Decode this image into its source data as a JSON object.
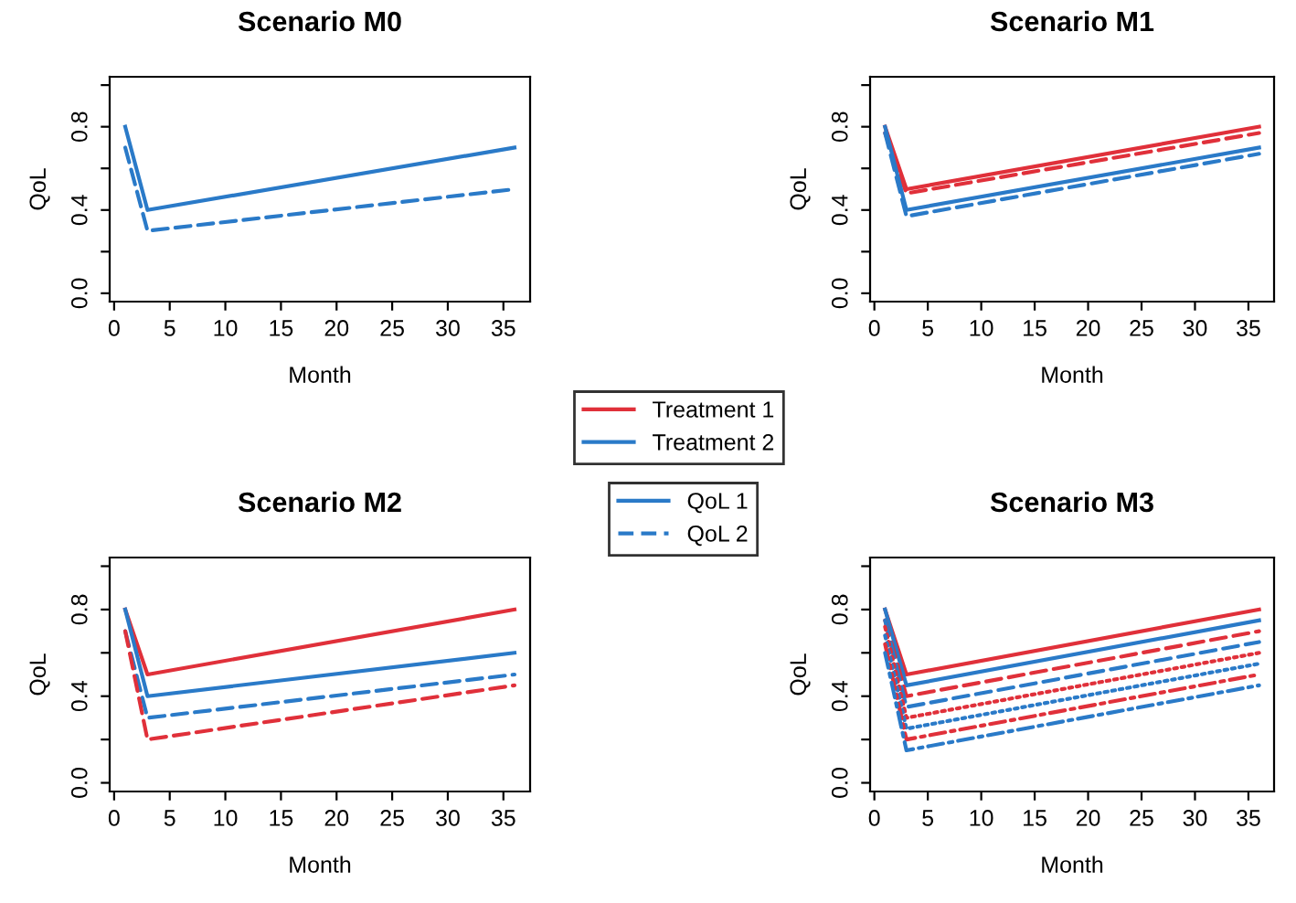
{
  "chart_data": [
    {
      "type": "line",
      "title": "Scenario M0",
      "xlabel": "Month",
      "ylabel": "QoL",
      "xlim": [
        -0.4,
        37.4
      ],
      "ylim": [
        -0.04,
        1.04
      ],
      "xticks": [
        0,
        5,
        10,
        15,
        20,
        25,
        30,
        35
      ],
      "yticks": [
        {
          "value": 0,
          "label": "0.0"
        },
        {
          "value": 0.2,
          "label": null
        },
        {
          "value": 0.4,
          "label": "0.4"
        },
        {
          "value": 0.6,
          "label": null
        },
        {
          "value": 0.8,
          "label": "0.8"
        },
        {
          "value": 1.0,
          "label": null
        }
      ],
      "grid": false,
      "legend": false,
      "series": [
        {
          "color": "#2a7ac8",
          "line_style": "solid",
          "x": [
            1,
            3,
            36
          ],
          "values": [
            0.8,
            0.4,
            0.7
          ]
        },
        {
          "color": "#2a7ac8",
          "line_style": "dashed",
          "x": [
            1,
            3,
            36
          ],
          "values": [
            0.7,
            0.3,
            0.5
          ]
        }
      ]
    },
    {
      "type": "line",
      "title": "Scenario M1",
      "xlabel": "Month",
      "ylabel": "QoL",
      "xlim": [
        -0.4,
        37.4
      ],
      "ylim": [
        -0.04,
        1.04
      ],
      "xticks": [
        0,
        5,
        10,
        15,
        20,
        25,
        30,
        35
      ],
      "yticks": [
        {
          "value": 0,
          "label": "0.0"
        },
        {
          "value": 0.2,
          "label": null
        },
        {
          "value": 0.4,
          "label": "0.4"
        },
        {
          "value": 0.6,
          "label": null
        },
        {
          "value": 0.8,
          "label": "0.8"
        },
        {
          "value": 1.0,
          "label": null
        }
      ],
      "grid": false,
      "legend": "bottom left",
      "series": [
        {
          "name": "Treatment 1",
          "color": "#e0303a",
          "line_style": "solid",
          "x": [
            1,
            3,
            36
          ],
          "values": [
            0.8,
            0.5,
            0.8
          ]
        },
        {
          "color": "#e0303a",
          "line_style": "dashed",
          "x": [
            1,
            3,
            36
          ],
          "values": [
            0.77,
            0.48,
            0.77
          ]
        },
        {
          "name": "Treatment 2",
          "color": "#2a7ac8",
          "line_style": "solid",
          "x": [
            1,
            3,
            36
          ],
          "values": [
            0.8,
            0.4,
            0.7
          ]
        },
        {
          "color": "#2a7ac8",
          "line_style": "dashed",
          "x": [
            1,
            3,
            36
          ],
          "values": [
            0.77,
            0.37,
            0.67
          ]
        }
      ]
    },
    {
      "type": "line",
      "title": "Scenario M2",
      "xlabel": "Month",
      "ylabel": "QoL",
      "xlim": [
        -0.4,
        37.4
      ],
      "ylim": [
        -0.04,
        1.04
      ],
      "xticks": [
        0,
        5,
        10,
        15,
        20,
        25,
        30,
        35
      ],
      "yticks": [
        {
          "value": 0,
          "label": "0.0"
        },
        {
          "value": 0.2,
          "label": null
        },
        {
          "value": 0.4,
          "label": "0.4"
        },
        {
          "value": 0.6,
          "label": null
        },
        {
          "value": 0.8,
          "label": "0.8"
        },
        {
          "value": 1.0,
          "label": null
        }
      ],
      "grid": false,
      "legend": "top right",
      "series": [
        {
          "color": "#e0303a",
          "line_style": "solid",
          "x": [
            1,
            3,
            36
          ],
          "values": [
            0.8,
            0.5,
            0.8
          ]
        },
        {
          "name": "QoL 1",
          "color": "#2a7ac8",
          "line_style": "solid",
          "x": [
            1,
            3,
            36
          ],
          "values": [
            0.8,
            0.4,
            0.6
          ]
        },
        {
          "name": "QoL 2",
          "color": "#2a7ac8",
          "line_style": "dashed",
          "x": [
            1,
            3,
            36
          ],
          "values": [
            0.7,
            0.3,
            0.5
          ]
        },
        {
          "color": "#e0303a",
          "line_style": "dashed",
          "x": [
            1,
            3,
            36
          ],
          "values": [
            0.7,
            0.2,
            0.45
          ]
        }
      ]
    },
    {
      "type": "line",
      "title": "Scenario M3",
      "xlabel": "Month",
      "ylabel": "QoL",
      "xlim": [
        -0.4,
        37.4
      ],
      "ylim": [
        -0.04,
        1.04
      ],
      "xticks": [
        0,
        5,
        10,
        15,
        20,
        25,
        30,
        35
      ],
      "yticks": [
        {
          "value": 0,
          "label": "0.0"
        },
        {
          "value": 0.2,
          "label": null
        },
        {
          "value": 0.4,
          "label": "0.4"
        },
        {
          "value": 0.6,
          "label": null
        },
        {
          "value": 0.8,
          "label": "0.8"
        },
        {
          "value": 1.0,
          "label": null
        }
      ],
      "grid": false,
      "legend": false,
      "series": [
        {
          "color": "#e0303a",
          "line_style": "solid",
          "x": [
            1,
            3,
            36
          ],
          "values": [
            0.8,
            0.5,
            0.8
          ]
        },
        {
          "color": "#2a7ac8",
          "line_style": "solid",
          "x": [
            1,
            3,
            36
          ],
          "values": [
            0.8,
            0.45,
            0.75
          ]
        },
        {
          "color": "#e0303a",
          "line_style": "dashed",
          "x": [
            1,
            3,
            36
          ],
          "values": [
            0.75,
            0.4,
            0.7
          ]
        },
        {
          "color": "#2a7ac8",
          "line_style": "dashed",
          "x": [
            1,
            3,
            36
          ],
          "values": [
            0.75,
            0.35,
            0.65
          ]
        },
        {
          "color": "#e0303a",
          "line_style": "dotted",
          "x": [
            1,
            3,
            36
          ],
          "values": [
            0.72,
            0.3,
            0.6
          ]
        },
        {
          "color": "#2a7ac8",
          "line_style": "dotted",
          "x": [
            1,
            3,
            36
          ],
          "values": [
            0.68,
            0.25,
            0.55
          ]
        },
        {
          "color": "#e0303a",
          "line_style": "dashdot",
          "x": [
            1,
            3,
            36
          ],
          "values": [
            0.64,
            0.2,
            0.5
          ]
        },
        {
          "color": "#2a7ac8",
          "line_style": "dashdot",
          "x": [
            1,
            3,
            36
          ],
          "values": [
            0.6,
            0.15,
            0.45
          ]
        }
      ]
    }
  ]
}
